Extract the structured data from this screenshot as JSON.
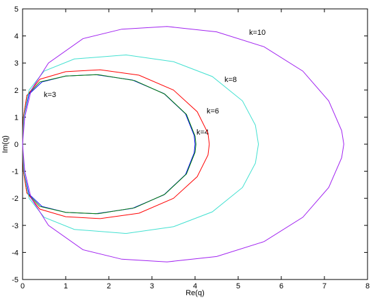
{
  "chart_data": {
    "type": "line",
    "xlabel": "Re(q)",
    "ylabel": "Im(q)",
    "xlim": [
      0,
      8
    ],
    "ylim": [
      -5,
      5
    ],
    "xticks": [
      0,
      1,
      2,
      3,
      4,
      5,
      6,
      7,
      8
    ],
    "yticks": [
      -5,
      -4,
      -3,
      -2,
      -1,
      0,
      1,
      2,
      3,
      4,
      5
    ],
    "grid": false,
    "series": [
      {
        "name": "k=3",
        "color": "#0000ff",
        "x": [
          0,
          0.03,
          0.15,
          0.45,
          1,
          1.7,
          2.55,
          3.28,
          3.78,
          3.98,
          4.0,
          3.98,
          3.78,
          3.28,
          2.55,
          1.7,
          1,
          0.45,
          0.15,
          0.03,
          0
        ],
        "values": [
          0,
          1,
          1.85,
          2.3,
          2.52,
          2.57,
          2.37,
          1.87,
          1.12,
          0.32,
          0,
          -0.32,
          -1.12,
          -1.87,
          -2.37,
          -2.57,
          -2.52,
          -2.3,
          -1.85,
          -1,
          0
        ]
      },
      {
        "name": "k=4",
        "color": "#008000",
        "x": [
          0,
          0.02,
          0.1,
          0.4,
          1,
          1.75,
          2.6,
          3.3,
          3.8,
          4.0,
          4.02,
          4.0,
          3.8,
          3.3,
          2.6,
          1.75,
          1,
          0.4,
          0.1,
          0.02,
          0
        ],
        "values": [
          0,
          1,
          1.8,
          2.3,
          2.52,
          2.57,
          2.35,
          1.85,
          1.1,
          0.3,
          0,
          -0.3,
          -1.1,
          -1.85,
          -2.35,
          -2.57,
          -2.52,
          -2.3,
          -1.8,
          -1,
          0
        ]
      },
      {
        "name": "k=6",
        "color": "#ff0000",
        "x": [
          0,
          0.02,
          0.1,
          0.4,
          1,
          1.8,
          2.7,
          3.5,
          4.05,
          4.3,
          4.33,
          4.3,
          4.05,
          3.5,
          2.7,
          1.8,
          1,
          0.4,
          0.1,
          0.02,
          0
        ],
        "values": [
          0,
          1,
          1.8,
          2.4,
          2.68,
          2.75,
          2.55,
          2.0,
          1.2,
          0.4,
          0,
          -0.4,
          -1.2,
          -2.0,
          -2.55,
          -2.75,
          -2.68,
          -2.4,
          -1.8,
          -1,
          0
        ]
      },
      {
        "name": "k=8",
        "color": "#40e0d0",
        "x": [
          0,
          0.03,
          0.15,
          0.5,
          1.2,
          2.4,
          3.5,
          4.4,
          5.1,
          5.4,
          5.47,
          5.4,
          5.1,
          4.4,
          3.5,
          2.4,
          1.2,
          0.5,
          0.15,
          0.03,
          0
        ],
        "values": [
          0,
          1,
          2,
          2.7,
          3.15,
          3.3,
          3.05,
          2.5,
          1.6,
          0.7,
          0,
          -0.7,
          -1.6,
          -2.5,
          -3.05,
          -3.3,
          -3.15,
          -2.7,
          -2,
          -1,
          0
        ]
      },
      {
        "name": "k=10",
        "color": "#a020f0",
        "x": [
          0,
          0.05,
          0.2,
          0.6,
          1.4,
          2.3,
          3.35,
          4.5,
          5.6,
          6.5,
          7.1,
          7.4,
          7.45,
          7.4,
          7.1,
          6.5,
          5.6,
          4.5,
          3.35,
          2.3,
          1.4,
          0.6,
          0.2,
          0.05,
          0
        ],
        "values": [
          0,
          1,
          2,
          3,
          3.9,
          4.25,
          4.35,
          4.15,
          3.6,
          2.7,
          1.6,
          0.5,
          0,
          -0.5,
          -1.6,
          -2.7,
          -3.6,
          -4.15,
          -4.35,
          -4.25,
          -3.9,
          -3,
          -2,
          -1,
          0
        ]
      }
    ]
  }
}
